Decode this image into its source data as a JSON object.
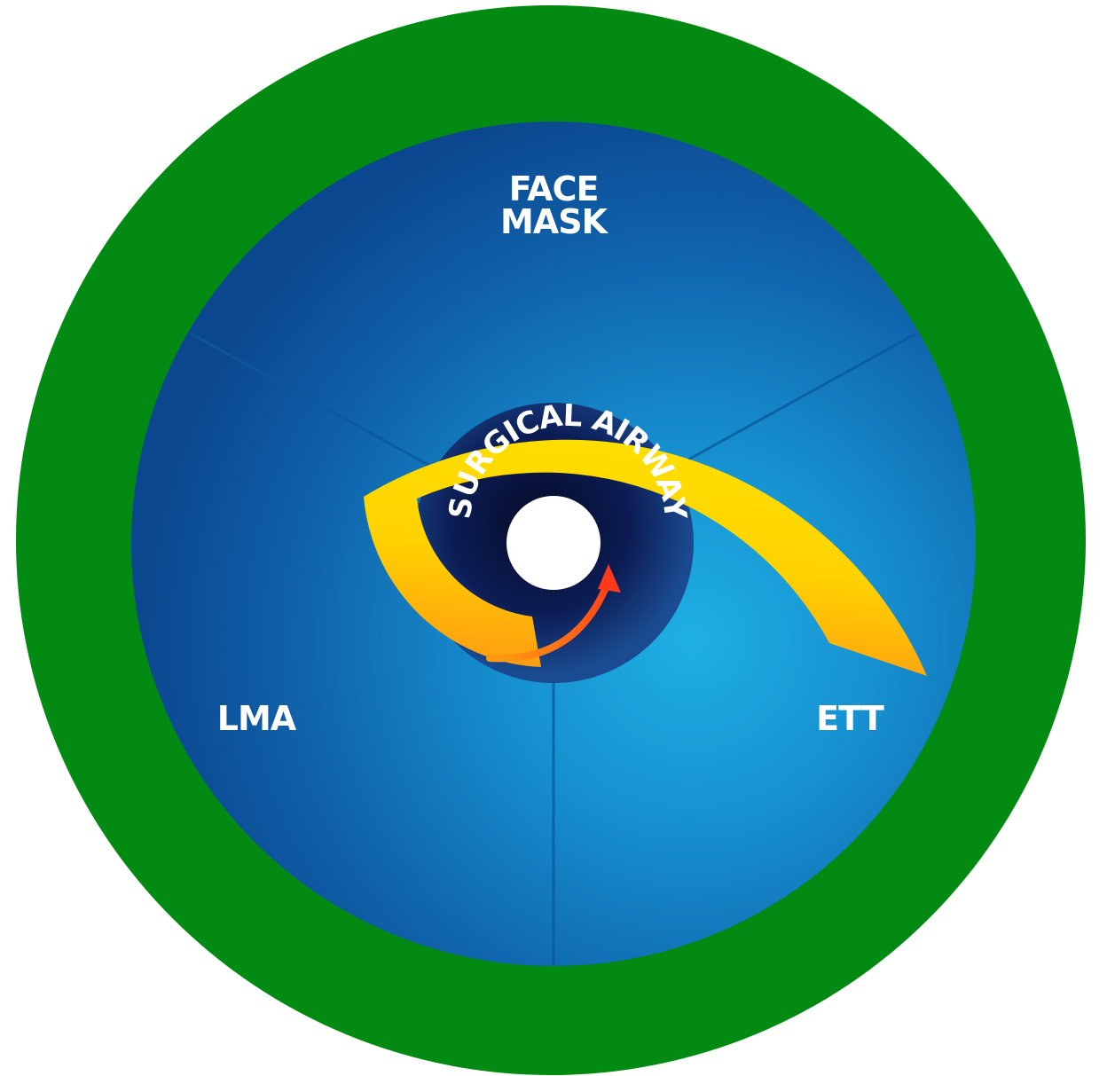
{
  "labels": {
    "face_mask_line1": "FACE",
    "face_mask_line2": "MASK",
    "lma": "LMA",
    "ett": "ETT",
    "center": "SURGICAL AIRWAY"
  },
  "colors": {
    "outer_ring": "#038a12",
    "sector_dark": "#0d4e98",
    "sector_light": "#1aa3d8",
    "center_dark": "#070f33",
    "arrow_yellow": "#ffe800",
    "arrow_orange": "#ff4a1a",
    "text": "#ffffff"
  }
}
